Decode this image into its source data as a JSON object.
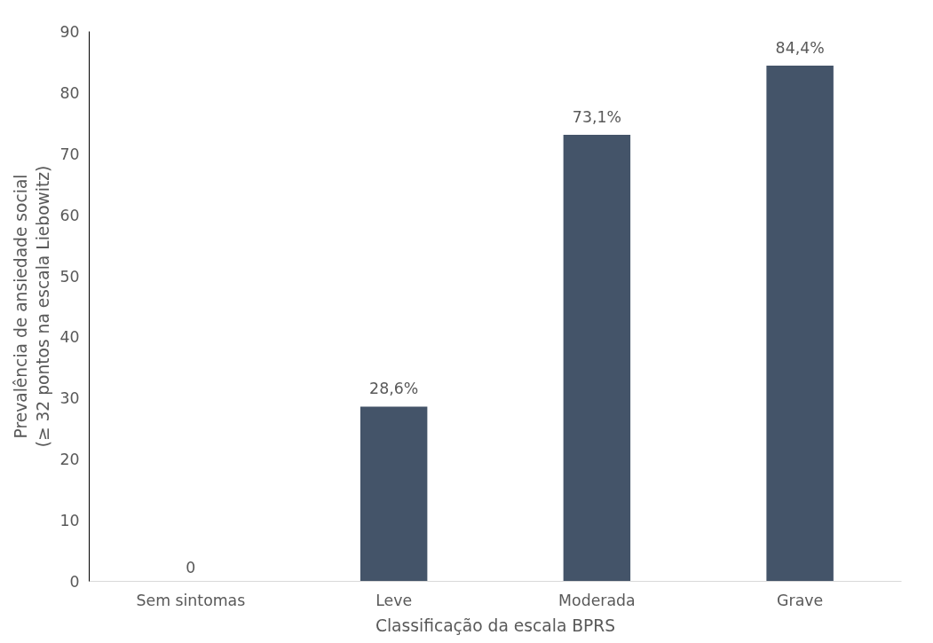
{
  "chart_data": {
    "type": "bar",
    "xlabel": "Classificação da escala BPRS",
    "ylabel": "Prevalência de ansiedade social (≥ 32 pontos na escala Liebowitz)",
    "categories": [
      "Sem sintomas",
      "Leve",
      "Moderada",
      "Grave"
    ],
    "values": [
      0,
      28.6,
      73.1,
      84.4
    ],
    "value_labels": [
      "0",
      "28,6%",
      "73,1%",
      "84,4%"
    ],
    "color": "#445469",
    "ylim": [
      0,
      90
    ],
    "yticks": [
      0,
      10,
      20,
      30,
      40,
      50,
      60,
      70,
      80,
      90
    ],
    "grid": false
  }
}
